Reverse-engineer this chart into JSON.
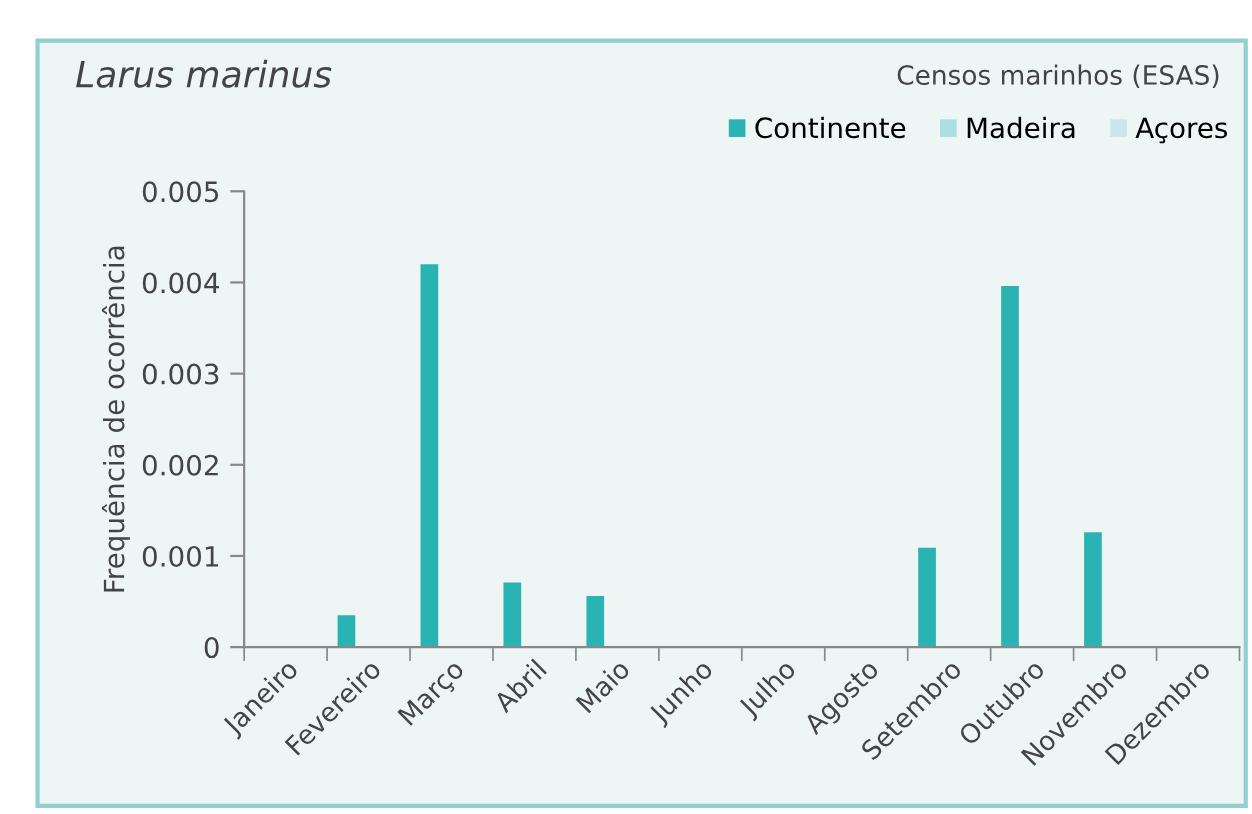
{
  "chart_data": {
    "type": "bar",
    "title": "Larus marinus",
    "subtitle": "Censos marinhos (ESAS)",
    "ylabel": "Frequência de ocorrência",
    "categories": [
      "Janeiro",
      "Fevereiro",
      "Março",
      "Abril",
      "Maio",
      "Junho",
      "Julho",
      "Agosto",
      "Setembro",
      "Outubro",
      "Novembro",
      "Dezembro"
    ],
    "series": [
      {
        "name": "Continente",
        "color": "#2ab3b3",
        "values": [
          0,
          0.00035,
          0.0042,
          0.00071,
          0.00056,
          0,
          0,
          0,
          0.00109,
          0.00396,
          0.00126,
          0
        ]
      },
      {
        "name": "Madeira",
        "color": "#a9dfe0",
        "values": [
          0,
          0,
          0,
          0,
          0,
          0,
          0,
          0,
          0,
          0,
          0,
          0
        ]
      },
      {
        "name": "Açores",
        "color": "#c9e6ea",
        "values": [
          0,
          0,
          0,
          0,
          0,
          0,
          0,
          0,
          0,
          0,
          0,
          0
        ]
      }
    ],
    "ylim": [
      0,
      0.005
    ],
    "yticks": [
      0,
      0.001,
      0.002,
      0.003,
      0.004,
      0.005
    ],
    "grid": false,
    "legend": "top right"
  }
}
